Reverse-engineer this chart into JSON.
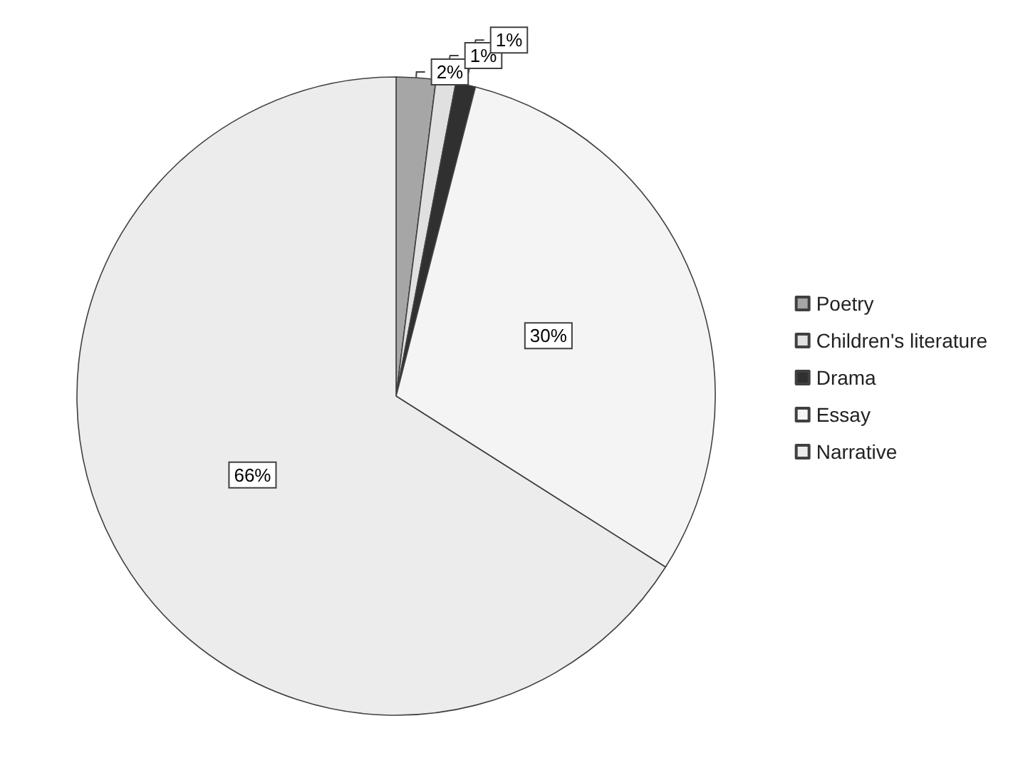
{
  "chart_data": {
    "type": "pie",
    "categories": [
      "Poetry",
      "Children's literature",
      "Drama",
      "Essay",
      "Narrative"
    ],
    "values": [
      2,
      1,
      1,
      30,
      66
    ],
    "value_labels": [
      "2%",
      "1%",
      "1%",
      "30%",
      "66%"
    ],
    "colors": [
      "#a6a6a6",
      "#e0e0e0",
      "#303030",
      "#f4f4f4",
      "#ececec"
    ],
    "legend": "right"
  }
}
